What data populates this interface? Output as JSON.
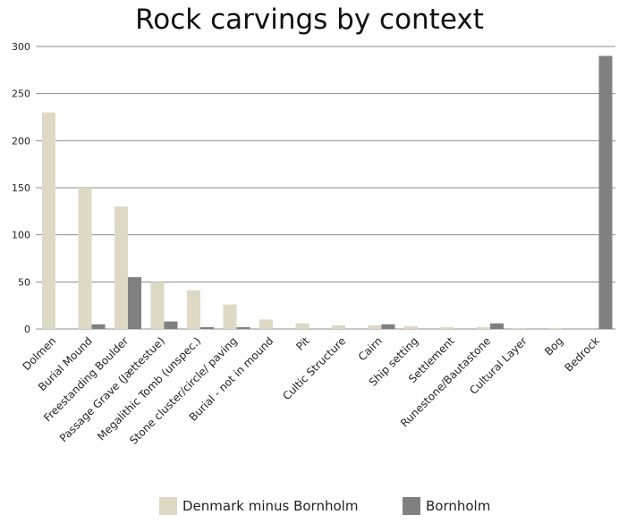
{
  "chart_data": {
    "type": "bar",
    "title": "Rock carvings by context",
    "xlabel": "",
    "ylabel": "",
    "ylim": [
      0,
      300
    ],
    "yticks": [
      0,
      50,
      100,
      150,
      200,
      250,
      300
    ],
    "grid": true,
    "legend_position": "bottom",
    "categories": [
      "Dolmen",
      "Burial Mound",
      "Freestanding Boulder",
      "Passage Grave (Jættestue)",
      "Megalithic Tomb (unspec.)",
      "Stone cluster/circle/ paving",
      "Burial - not in mound",
      "Pit",
      "Cultic Structure",
      "Cairn",
      "Ship setting",
      "Settlement",
      "Runestone/Bautastone",
      "Cultural Layer",
      "Bog",
      "Bedrock"
    ],
    "series": [
      {
        "name": "Denmark minus Bornholm",
        "color": "#ddd9c4",
        "values": [
          230,
          150,
          130,
          50,
          41,
          26,
          10,
          6,
          4,
          4,
          3,
          2,
          2,
          1,
          1,
          0
        ]
      },
      {
        "name": "Bornholm",
        "color": "#808080",
        "values": [
          0,
          5,
          55,
          8,
          2,
          2,
          0,
          0,
          0,
          5,
          0,
          0,
          6,
          0,
          0,
          290
        ]
      }
    ]
  }
}
